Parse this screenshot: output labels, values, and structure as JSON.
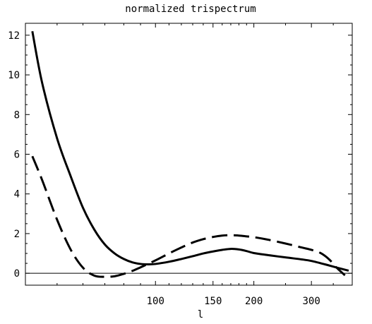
{
  "chart_data": {
    "type": "line",
    "title": "normalized trispectrum",
    "xlabel": "l",
    "ylabel": "",
    "x_scale": "log",
    "xlim": [
      40,
      400
    ],
    "ylim": [
      -0.6,
      12.6
    ],
    "x_ticks": [
      100,
      150,
      200,
      300
    ],
    "x_tick_labels": [
      "100",
      "150",
      "200",
      "300"
    ],
    "y_ticks": [
      0,
      2,
      4,
      6,
      8,
      10,
      12
    ],
    "y_tick_labels": [
      "0",
      "2",
      "4",
      "6",
      "8",
      "10",
      "12"
    ],
    "grid": false,
    "legend": "none",
    "series": [
      {
        "style": "solid",
        "color": "#000000",
        "x": [
          42,
          45,
          50,
          55,
          60,
          65,
          70,
          75,
          80,
          85,
          90,
          95,
          100,
          110,
          120,
          130,
          140,
          150,
          160,
          170,
          180,
          190,
          200,
          220,
          250,
          280,
          300,
          330,
          360,
          390
        ],
        "y": [
          12.2,
          9.6,
          6.8,
          4.9,
          3.3,
          2.2,
          1.45,
          1.0,
          0.72,
          0.55,
          0.47,
          0.45,
          0.47,
          0.58,
          0.72,
          0.86,
          1.0,
          1.1,
          1.18,
          1.23,
          1.2,
          1.12,
          1.02,
          0.92,
          0.8,
          0.7,
          0.62,
          0.45,
          0.28,
          0.13
        ]
      },
      {
        "style": "dashed",
        "color": "#000000",
        "x": [
          42,
          45,
          50,
          55,
          60,
          65,
          70,
          75,
          80,
          85,
          90,
          100,
          110,
          120,
          130,
          140,
          150,
          160,
          170,
          180,
          190,
          200,
          220,
          250,
          280,
          300,
          320,
          340,
          360,
          380
        ],
        "y": [
          5.9,
          4.7,
          2.7,
          1.2,
          0.28,
          -0.12,
          -0.18,
          -0.15,
          -0.03,
          0.12,
          0.3,
          0.65,
          1.0,
          1.3,
          1.55,
          1.72,
          1.83,
          1.9,
          1.92,
          1.9,
          1.86,
          1.82,
          1.7,
          1.5,
          1.3,
          1.18,
          1.02,
          0.7,
          0.25,
          -0.1
        ]
      }
    ]
  }
}
